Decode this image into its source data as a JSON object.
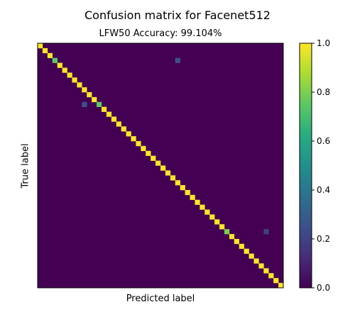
{
  "chart_data": {
    "type": "heatmap",
    "title": "Confusion matrix for Facenet512",
    "subtitle": "LFW50 Accuracy: 99.104%",
    "xlabel": "Predicted label",
    "ylabel": "True label",
    "size": 50,
    "colormap": "viridis",
    "color_range": [
      0.0,
      1.0
    ],
    "colorbar_ticks": [
      "0.0",
      "0.2",
      "0.4",
      "0.6",
      "0.8",
      "1.0"
    ],
    "colorbar_tick_values": [
      0.0,
      0.2,
      0.4,
      0.6,
      0.8,
      1.0
    ],
    "x_ticks_visible": false,
    "y_ticks_visible": false,
    "diagonal_value": 1.0,
    "diagonal_overrides": [
      {
        "row": 3,
        "col": 3,
        "value": 0.75
      },
      {
        "row": 12,
        "col": 12,
        "value": 0.75
      },
      {
        "row": 38,
        "col": 38,
        "value": 0.8
      }
    ],
    "off_diagonal_cells": [
      {
        "row": 3,
        "col": 28,
        "value": 0.25
      },
      {
        "row": 12,
        "col": 9,
        "value": 0.25
      },
      {
        "row": 38,
        "col": 46,
        "value": 0.2
      }
    ]
  }
}
